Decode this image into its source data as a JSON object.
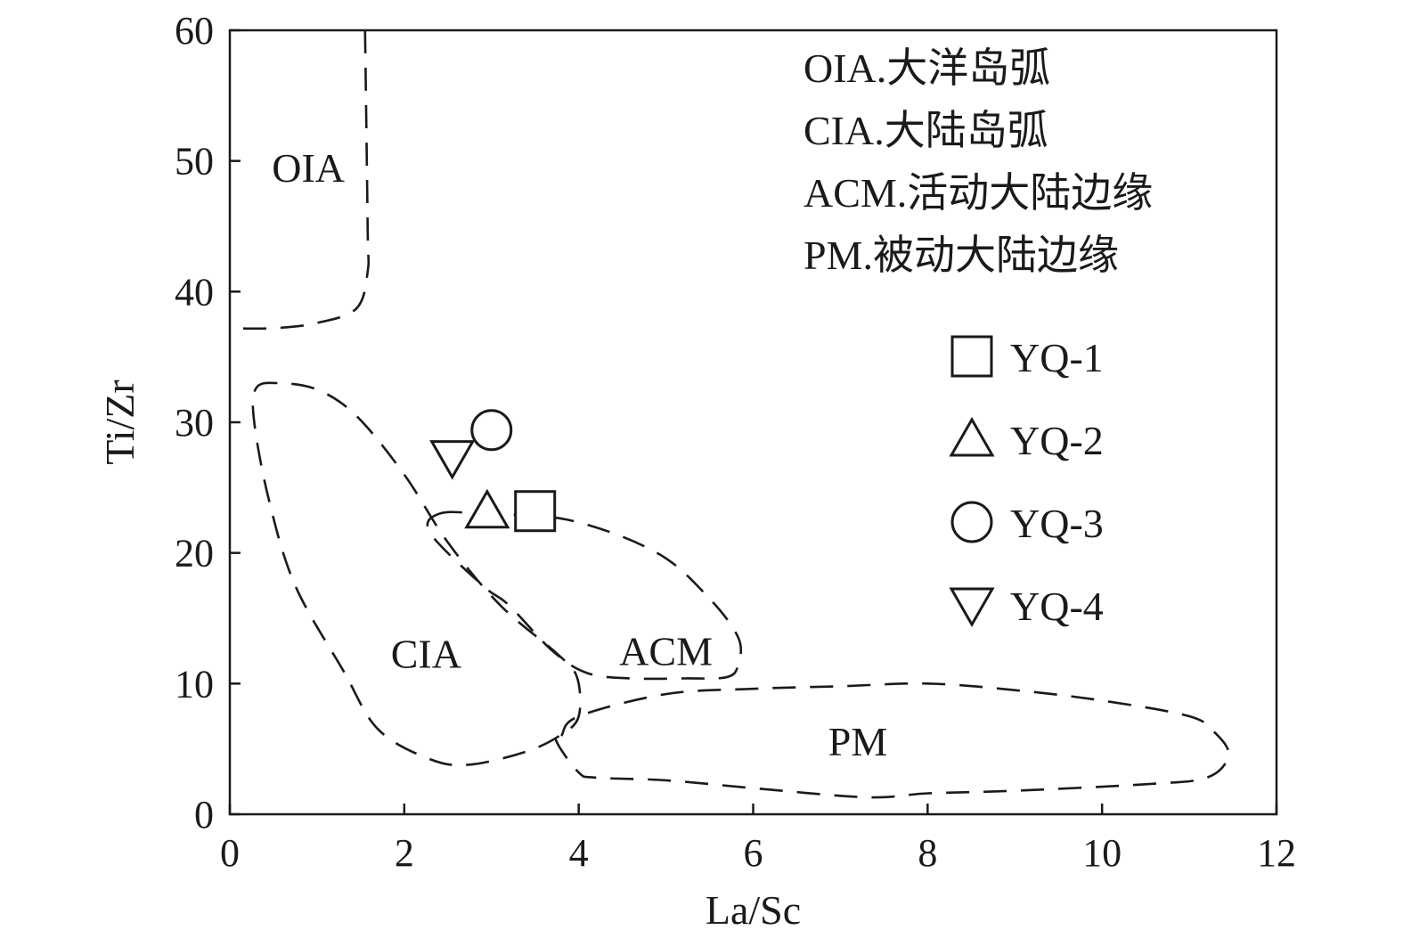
{
  "chart_data": {
    "type": "scatter",
    "xlabel": "La/Sc",
    "ylabel": "Ti/Zr",
    "xlim": [
      0,
      12
    ],
    "ylim": [
      0,
      60
    ],
    "xticks": [
      "0",
      "2",
      "4",
      "6",
      "8",
      "10",
      "12"
    ],
    "yticks": [
      "0",
      "10",
      "20",
      "30",
      "40",
      "50",
      "60"
    ],
    "grid": false,
    "legend_position": "right",
    "fields": [
      {
        "label": "OIA",
        "label_pos": [
          0.9,
          49.5
        ],
        "boundary": [
          [
            1.55,
            60
          ],
          [
            1.58,
            45
          ],
          [
            1.58,
            41.5
          ],
          [
            1.45,
            38.7
          ],
          [
            1.0,
            37.6
          ],
          [
            0.5,
            37.2
          ],
          [
            0,
            37.2
          ]
        ]
      },
      {
        "label": "CIA",
        "label_pos": [
          2.25,
          12.3
        ],
        "boundary": [
          [
            0.3,
            32.6
          ],
          [
            0.55,
            33.0
          ],
          [
            1.0,
            32.5
          ],
          [
            1.45,
            30.5
          ],
          [
            2.0,
            26.0
          ],
          [
            2.5,
            20.8
          ],
          [
            3.1,
            16.0
          ],
          [
            3.75,
            12.3
          ],
          [
            3.98,
            10.5
          ],
          [
            4.0,
            7.5
          ],
          [
            3.8,
            6.1
          ],
          [
            3.4,
            4.8
          ],
          [
            2.75,
            3.8
          ],
          [
            2.3,
            4.2
          ],
          [
            1.7,
            6.5
          ],
          [
            1.3,
            11.0
          ],
          [
            0.75,
            17.5
          ],
          [
            0.45,
            24.0
          ],
          [
            0.28,
            30.0
          ],
          [
            0.3,
            32.6
          ]
        ]
      },
      {
        "label": "ACM",
        "label_pos": [
          5.0,
          12.5
        ],
        "boundary": [
          [
            2.4,
            23.0
          ],
          [
            2.9,
            23.0
          ],
          [
            3.9,
            22.5
          ],
          [
            4.9,
            20.0
          ],
          [
            5.5,
            16.5
          ],
          [
            5.83,
            13.5
          ],
          [
            5.83,
            11.5
          ],
          [
            5.7,
            10.5
          ],
          [
            5.2,
            10.4
          ],
          [
            4.6,
            10.4
          ],
          [
            4.1,
            10.8
          ],
          [
            3.7,
            12.5
          ],
          [
            3.2,
            16.0
          ],
          [
            2.9,
            17.5
          ],
          [
            2.3,
            21.5
          ],
          [
            2.4,
            23.0
          ]
        ]
      },
      {
        "label": "PM",
        "label_pos": [
          7.2,
          5.6
        ],
        "boundary": [
          [
            3.8,
            6.0
          ],
          [
            4.0,
            7.5
          ],
          [
            5.0,
            9.2
          ],
          [
            6.0,
            9.6
          ],
          [
            7.0,
            9.8
          ],
          [
            8.0,
            10.0
          ],
          [
            9.0,
            9.5
          ],
          [
            10.0,
            8.7
          ],
          [
            11.0,
            7.5
          ],
          [
            11.3,
            6.2
          ],
          [
            11.45,
            4.5
          ],
          [
            11.2,
            2.8
          ],
          [
            10.5,
            2.3
          ],
          [
            9.0,
            1.8
          ],
          [
            8.0,
            1.6
          ],
          [
            7.3,
            1.3
          ],
          [
            6.0,
            2.0
          ],
          [
            5.0,
            2.6
          ],
          [
            4.2,
            2.8
          ],
          [
            4.0,
            3.2
          ],
          [
            3.75,
            5.5
          ],
          [
            3.8,
            6.0
          ]
        ]
      }
    ],
    "notes": [
      "OIA.大洋岛弧",
      "CIA.大陆岛弧",
      "ACM.活动大陆边缘",
      "PM.被动大陆边缘"
    ],
    "series": [
      {
        "name": "YQ-1",
        "marker": "square",
        "points": [
          [
            3.5,
            23.2
          ]
        ]
      },
      {
        "name": "YQ-2",
        "marker": "triangle-up",
        "points": [
          [
            2.95,
            23.2
          ]
        ]
      },
      {
        "name": "YQ-3",
        "marker": "circle",
        "points": [
          [
            3.0,
            29.4
          ]
        ]
      },
      {
        "name": "YQ-4",
        "marker": "triangle-down",
        "points": [
          [
            2.55,
            27.3
          ]
        ]
      }
    ],
    "color": "#1a1a1a"
  }
}
